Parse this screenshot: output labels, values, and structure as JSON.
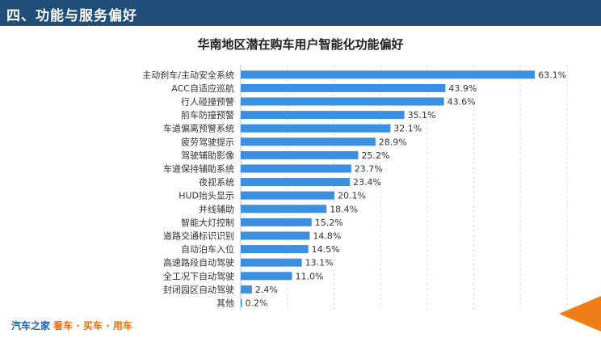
{
  "header": {
    "title": "四、功能与服务偏好"
  },
  "footer": {
    "brand": "汽车之家",
    "slogan": "看车 · 买车 · 用车"
  },
  "colors": {
    "header_bg": "#1f4e79",
    "bar": "#3a8fe0",
    "accent_arrow": "#f07d16"
  },
  "chart_data": {
    "type": "bar",
    "orientation": "horizontal",
    "title": "华南地区潜在购车用户智能化功能偏好",
    "categories": [
      "主动刹车/主动安全系统",
      "ACC自适应巡航",
      "行人碰撞预警",
      "前车防撞预警",
      "车道偏离预警系统",
      "疲劳驾驶提示",
      "驾驶辅助影像",
      "车道保持辅助系统",
      "夜视系统",
      "HUD抬头显示",
      "并线辅助",
      "智能大灯控制",
      "道路交通标识识别",
      "自动泊车入位",
      "高速路段自动驾驶",
      "全工况下自动驾驶",
      "封闭园区自动驾驶",
      "其他"
    ],
    "values": [
      63.1,
      43.9,
      43.6,
      35.1,
      32.1,
      28.9,
      25.2,
      23.7,
      23.4,
      20.1,
      18.4,
      15.2,
      14.8,
      14.5,
      13.1,
      11.0,
      2.4,
      0.2
    ],
    "value_labels": [
      "63.1%",
      "43.9%",
      "43.6%",
      "35.1%",
      "32.1%",
      "28.9%",
      "25.2%",
      "23.7%",
      "23.4%",
      "20.1%",
      "18.4%",
      "15.2%",
      "14.8%",
      "14.5%",
      "13.1%",
      "11.0%",
      "2.4%",
      "0.2%"
    ],
    "xlabel": "",
    "ylabel": "",
    "xlim": [
      0,
      70
    ],
    "grid": true
  }
}
